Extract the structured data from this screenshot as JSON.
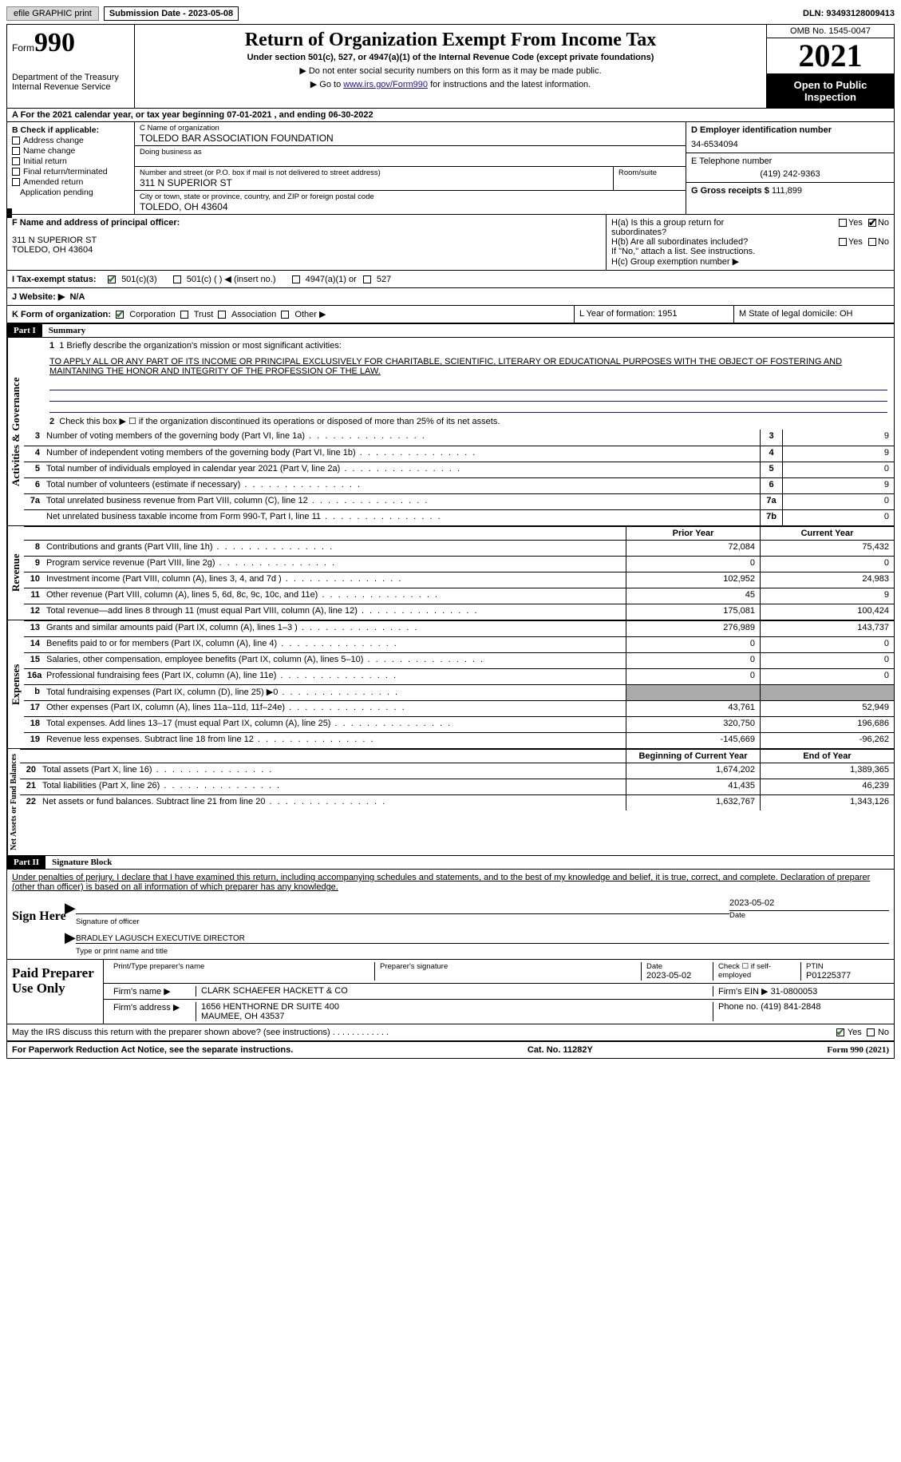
{
  "topbar": {
    "efile": "efile GRAPHIC print",
    "submission": "Submission Date - 2023-05-08",
    "dln": "DLN: 93493128009413"
  },
  "header": {
    "form_prefix": "Form",
    "form_number": "990",
    "title": "Return of Organization Exempt From Income Tax",
    "subtitle": "Under section 501(c), 527, or 4947(a)(1) of the Internal Revenue Code (except private foundations)",
    "note1": "▶ Do not enter social security numbers on this form as it may be made public.",
    "note2_pre": "▶ Go to ",
    "note2_link": "www.irs.gov/Form990",
    "note2_post": " for instructions and the latest information.",
    "dept": "Department of the Treasury\nInternal Revenue Service",
    "omb": "OMB No. 1545-0047",
    "year": "2021",
    "open": "Open to Public Inspection"
  },
  "row_a": "A For the 2021 calendar year, or tax year beginning 07-01-2021   , and ending 06-30-2022",
  "section_b": {
    "caption": "B Check if applicable:",
    "items": [
      "Address change",
      "Name change",
      "Initial return",
      "Final return/terminated",
      "Amended return",
      "Application pending"
    ]
  },
  "section_c": {
    "name_cap": "C Name of organization",
    "name_val": "TOLEDO BAR ASSOCIATION FOUNDATION",
    "dba_cap": "Doing business as",
    "addr_cap": "Number and street (or P.O. box if mail is not delivered to street address)",
    "room_cap": "Room/suite",
    "addr_val": "311 N SUPERIOR ST",
    "city_cap": "City or town, state or province, country, and ZIP or foreign postal code",
    "city_val": "TOLEDO, OH  43604"
  },
  "section_d": {
    "ein_cap": "D Employer identification number",
    "ein_val": "34-6534094",
    "phone_cap": "E Telephone number",
    "phone_val": "(419) 242-9363",
    "gross_cap": "G Gross receipts $",
    "gross_val": "111,899"
  },
  "section_f": {
    "cap": "F  Name and address of principal officer:",
    "addr1": "311 N SUPERIOR ST",
    "addr2": "TOLEDO, OH  43604"
  },
  "section_h": {
    "ha": "H(a)  Is this a group return for subordinates?",
    "hb": "H(b)  Are all subordinates included?",
    "hb_note": "If \"No,\" attach a list. See instructions.",
    "hc": "H(c)  Group exemption number ▶"
  },
  "tax_status": {
    "label": "I  Tax-exempt status:",
    "opt1": "501(c)(3)",
    "opt2": "501(c) (  ) ◀ (insert no.)",
    "opt3": "4947(a)(1) or",
    "opt4": "527"
  },
  "website": {
    "label": "J  Website: ▶",
    "val": "N/A"
  },
  "row_k": {
    "label": "K Form of organization:",
    "opts": [
      "Corporation",
      "Trust",
      "Association",
      "Other ▶"
    ],
    "l": "L Year of formation: 1951",
    "m": "M State of legal domicile: OH"
  },
  "part1": {
    "hdr": "Part I",
    "title": "Summary",
    "line1_cap": "1  Briefly describe the organization's mission or most significant activities:",
    "mission": "TO APPLY ALL OR ANY PART OF ITS INCOME OR PRINCIPAL EXCLUSIVELY FOR CHARITABLE, SCIENTIFIC, LITERARY OR EDUCATIONAL PURPOSES WITH THE OBJECT OF FOSTERING AND MAINTANING THE HONOR AND INTEGRITY OF THE PROFESSION OF THE LAW.",
    "line2": "Check this box ▶ ☐  if the organization discontinued its operations or disposed of more than 25% of its net assets.",
    "vtab_ag": "Activities & Governance",
    "vtab_rev": "Revenue",
    "vtab_exp": "Expenses",
    "vtab_na": "Net Assets or Fund Balances",
    "rows_ag": [
      {
        "n": "3",
        "t": "Number of voting members of the governing body (Part VI, line 1a)",
        "box": "3",
        "v": "9"
      },
      {
        "n": "4",
        "t": "Number of independent voting members of the governing body (Part VI, line 1b)",
        "box": "4",
        "v": "9"
      },
      {
        "n": "5",
        "t": "Total number of individuals employed in calendar year 2021 (Part V, line 2a)",
        "box": "5",
        "v": "0"
      },
      {
        "n": "6",
        "t": "Total number of volunteers (estimate if necessary)",
        "box": "6",
        "v": "9"
      },
      {
        "n": "7a",
        "t": "Total unrelated business revenue from Part VIII, column (C), line 12",
        "box": "7a",
        "v": "0"
      },
      {
        "n": "",
        "t": "Net unrelated business taxable income from Form 990-T, Part I, line 11",
        "box": "7b",
        "v": "0"
      }
    ],
    "col_prior": "Prior Year",
    "col_current": "Current Year",
    "rows_rev": [
      {
        "n": "8",
        "t": "Contributions and grants (Part VIII, line 1h)",
        "p": "72,084",
        "c": "75,432"
      },
      {
        "n": "9",
        "t": "Program service revenue (Part VIII, line 2g)",
        "p": "0",
        "c": "0"
      },
      {
        "n": "10",
        "t": "Investment income (Part VIII, column (A), lines 3, 4, and 7d )",
        "p": "102,952",
        "c": "24,983"
      },
      {
        "n": "11",
        "t": "Other revenue (Part VIII, column (A), lines 5, 6d, 8c, 9c, 10c, and 11e)",
        "p": "45",
        "c": "9"
      },
      {
        "n": "12",
        "t": "Total revenue—add lines 8 through 11 (must equal Part VIII, column (A), line 12)",
        "p": "175,081",
        "c": "100,424"
      }
    ],
    "rows_exp": [
      {
        "n": "13",
        "t": "Grants and similar amounts paid (Part IX, column (A), lines 1–3 )",
        "p": "276,989",
        "c": "143,737"
      },
      {
        "n": "14",
        "t": "Benefits paid to or for members (Part IX, column (A), line 4)",
        "p": "0",
        "c": "0"
      },
      {
        "n": "15",
        "t": "Salaries, other compensation, employee benefits (Part IX, column (A), lines 5–10)",
        "p": "0",
        "c": "0"
      },
      {
        "n": "16a",
        "t": "Professional fundraising fees (Part IX, column (A), line 11e)",
        "p": "0",
        "c": "0"
      },
      {
        "n": "b",
        "t": "Total fundraising expenses (Part IX, column (D), line 25) ▶0",
        "p": "grey",
        "c": "grey"
      },
      {
        "n": "17",
        "t": "Other expenses (Part IX, column (A), lines 11a–11d, 11f–24e)",
        "p": "43,761",
        "c": "52,949"
      },
      {
        "n": "18",
        "t": "Total expenses. Add lines 13–17 (must equal Part IX, column (A), line 25)",
        "p": "320,750",
        "c": "196,686"
      },
      {
        "n": "19",
        "t": "Revenue less expenses. Subtract line 18 from line 12",
        "p": "-145,669",
        "c": "-96,262"
      }
    ],
    "col_begin": "Beginning of Current Year",
    "col_end": "End of Year",
    "rows_na": [
      {
        "n": "20",
        "t": "Total assets (Part X, line 16)",
        "p": "1,674,202",
        "c": "1,389,365"
      },
      {
        "n": "21",
        "t": "Total liabilities (Part X, line 26)",
        "p": "41,435",
        "c": "46,239"
      },
      {
        "n": "22",
        "t": "Net assets or fund balances. Subtract line 21 from line 20",
        "p": "1,632,767",
        "c": "1,343,126"
      }
    ]
  },
  "part2": {
    "hdr": "Part II",
    "title": "Signature Block",
    "penalty": "Under penalties of perjury, I declare that I have examined this return, including accompanying schedules and statements, and to the best of my knowledge and belief, it is true, correct, and complete. Declaration of preparer (other than officer) is based on all information of which preparer has any knowledge.",
    "sign_here": "Sign Here",
    "sig_officer": "Signature of officer",
    "sig_date": "2023-05-02",
    "sig_name": "BRADLEY LAGUSCH  EXECUTIVE DIRECTOR",
    "sig_name_cap": "Type or print name and title",
    "date_cap": "Date"
  },
  "paid": {
    "label": "Paid Preparer Use Only",
    "print_cap": "Print/Type preparer's name",
    "sig_cap": "Preparer's signature",
    "date_cap": "Date",
    "date_val": "2023-05-02",
    "self_cap": "Check ☐ if self-employed",
    "ptin_cap": "PTIN",
    "ptin_val": "P01225377",
    "firm_name_cap": "Firm's name    ▶",
    "firm_name_val": "CLARK SCHAEFER HACKETT & CO",
    "firm_ein_cap": "Firm's EIN ▶",
    "firm_ein_val": "31-0800053",
    "firm_addr_cap": "Firm's address ▶",
    "firm_addr_val1": "1656 HENTHORNE DR SUITE 400",
    "firm_addr_val2": "MAUMEE, OH  43537",
    "phone_cap": "Phone no.",
    "phone_val": "(419) 841-2848"
  },
  "discuss": {
    "q": "May the IRS discuss this return with the preparer shown above? (see instructions)",
    "yes": "Yes",
    "no": "No"
  },
  "footer": {
    "left": "For Paperwork Reduction Act Notice, see the separate instructions.",
    "mid": "Cat. No. 11282Y",
    "right": "Form 990 (2021)"
  }
}
